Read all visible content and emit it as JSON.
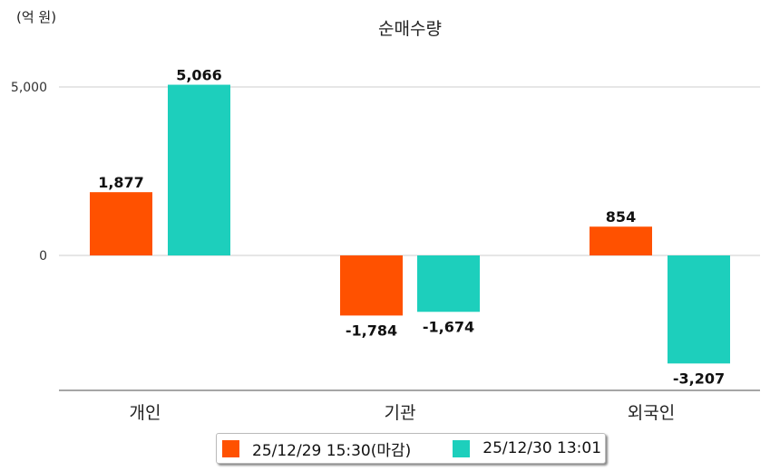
{
  "chart_data": {
    "type": "bar",
    "title": "순매수량",
    "unit_label": "(억 원)",
    "categories": [
      "개인",
      "기관",
      "외국인"
    ],
    "series": [
      {
        "name": "25/12/29 15:30(마감)",
        "color": "#ff5100",
        "values": [
          1877,
          -1784,
          854
        ],
        "labels": [
          "1,877",
          "-1,784",
          "854"
        ]
      },
      {
        "name": "25/12/30 13:01",
        "color": "#1dcfbc",
        "values": [
          5066,
          -1674,
          -3207
        ],
        "labels": [
          "5,066",
          "-1,674",
          "-3,207"
        ]
      }
    ],
    "yticks": [
      0,
      5000
    ],
    "ytick_labels": [
      "0",
      "5,000"
    ],
    "ylim": [
      -4000,
      5000
    ],
    "grid": true,
    "legend": "bottom"
  }
}
